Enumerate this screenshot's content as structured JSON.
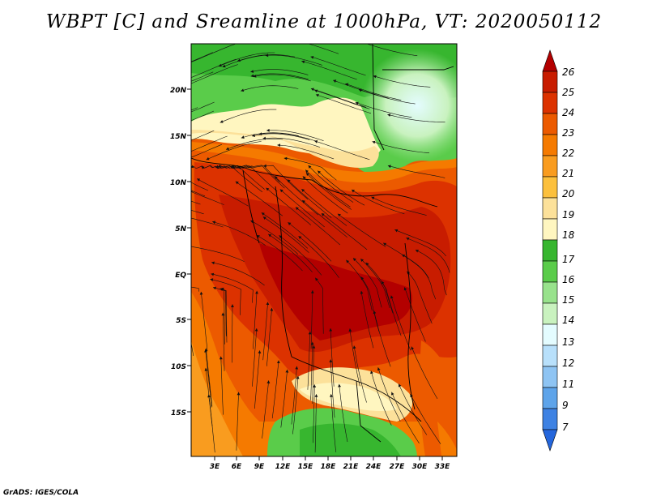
{
  "title": "WBPT [C] and Sreamline at 1000hPa, VT: 2020050112",
  "credit": "GrADS: IGES/COLA",
  "map": {
    "lat_labels": [
      "20N",
      "15N",
      "10N",
      "5N",
      "EQ",
      "5S",
      "10S",
      "15S"
    ],
    "lon_labels": [
      "3E",
      "6E",
      "9E",
      "12E",
      "15E",
      "18E",
      "21E",
      "24E",
      "27E",
      "30E",
      "33E"
    ]
  },
  "colorbar": {
    "labels": [
      "26",
      "25",
      "24",
      "23",
      "22",
      "21",
      "20",
      "19",
      "18",
      "17",
      "16",
      "15",
      "14",
      "13",
      "12",
      "11",
      "9",
      "7"
    ],
    "colors": [
      "#b30000",
      "#c81c00",
      "#dc3200",
      "#ec5a00",
      "#f57a00",
      "#f99c1f",
      "#fcc03c",
      "#fce19a",
      "#fff6c0",
      "#37b62f",
      "#5acc4a",
      "#98e28c",
      "#c9f2bf",
      "#e4fcff",
      "#b8e0fb",
      "#8ec4f3",
      "#5ea4ea",
      "#3e82e3",
      "#2466dc"
    ]
  }
}
